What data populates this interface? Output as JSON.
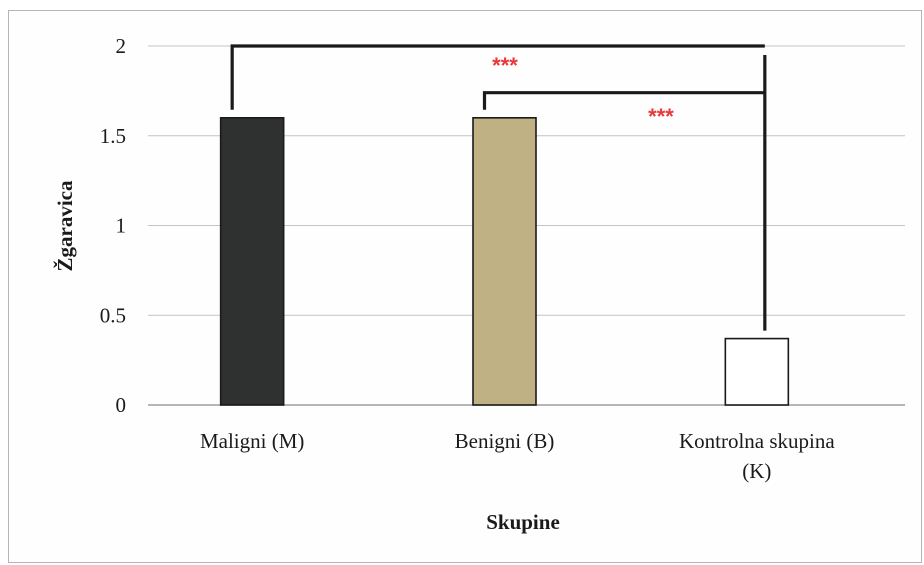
{
  "chart_data": {
    "type": "bar",
    "categories": [
      "Maligni (M)",
      "Benigni (B)",
      "Kontrolna skupina (K)"
    ],
    "values": [
      1.6,
      1.6,
      0.37
    ],
    "xlabel": "Skupine",
    "ylabel": "Žgaravica",
    "ylim": [
      0,
      2
    ],
    "yticks": [
      "0",
      "0.5",
      "1",
      "1.5",
      "2"
    ],
    "grid": true,
    "bar_colors": [
      "#2f3131",
      "#bfb184",
      "#ffffff"
    ],
    "significance": [
      {
        "from": "Maligni (M)",
        "to": "Kontrolna skupina (K)",
        "label": "***"
      },
      {
        "from": "Benigni (B)",
        "to": "Kontrolna skupina (K)",
        "label": "***"
      }
    ],
    "significance_color": "#e8393a"
  }
}
